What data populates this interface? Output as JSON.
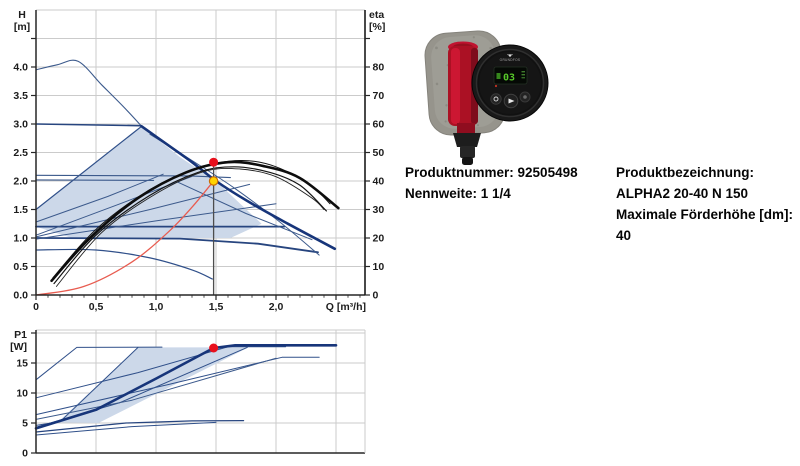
{
  "product": {
    "fields_left": [
      {
        "label": "Produktnummer:",
        "value": "92505498"
      },
      {
        "label": "Nennweite:",
        "value": "1 1/4"
      }
    ],
    "fields_right": [
      {
        "label": "Produktbezeichnung:",
        "value": "ALPHA2 20-40 N 150"
      },
      {
        "label": "Maximale Förderhöhe [dm]:",
        "value": "40"
      }
    ]
  },
  "pump_image": {
    "description": "Grundfos ALPHA2 circulator pump with grey insulation shell, red housing and black round control head",
    "display_text": "03",
    "brand_text": "GRUNDFOS",
    "body_color": "#b01226",
    "shell_color": "#96948c",
    "head_color": "#191919",
    "display_color": "#57c82a"
  },
  "chart_data": [
    {
      "type": "line",
      "name": "head-efficiency-chart",
      "axes": {
        "h_label": "H",
        "h_unit": "[m]",
        "eta_label": "eta",
        "eta_unit": "[%]",
        "x_label": "Q [m³/h]"
      },
      "xlim": [
        0,
        2.74
      ],
      "hlim": [
        0,
        5.0
      ],
      "etalim": [
        0,
        100
      ],
      "grid": true,
      "x_grid": [
        0.5,
        1.0,
        1.5,
        2.0,
        2.5
      ],
      "h_grid": [
        0.5,
        1.0,
        1.5,
        2.0,
        2.5,
        3.0,
        3.5,
        4.0,
        4.5
      ],
      "x_ticks": [
        {
          "v": 0,
          "t": "0"
        },
        {
          "v": 0.5,
          "t": "0,5"
        },
        {
          "v": 1.0,
          "t": "1,0"
        },
        {
          "v": 1.5,
          "t": "1,5"
        },
        {
          "v": 2.0,
          "t": "2,0"
        },
        {
          "v": 2.5,
          "t": ""
        }
      ],
      "h_ticks": [
        {
          "v": 0,
          "t": "0.0"
        },
        {
          "v": 0.5,
          "t": "0.5"
        },
        {
          "v": 1.0,
          "t": "1.0"
        },
        {
          "v": 1.5,
          "t": "1.5"
        },
        {
          "v": 2.0,
          "t": "2.0"
        },
        {
          "v": 2.5,
          "t": "2.5"
        },
        {
          "v": 3.0,
          "t": "3.0"
        },
        {
          "v": 3.5,
          "t": "3.5"
        },
        {
          "v": 4.0,
          "t": "4.0"
        },
        {
          "v": 4.5,
          "t": ""
        }
      ],
      "eta_ticks": [
        {
          "v": 0,
          "t": "0"
        },
        {
          "v": 10,
          "t": "10"
        },
        {
          "v": 20,
          "t": "20"
        },
        {
          "v": 30,
          "t": "30"
        },
        {
          "v": 40,
          "t": "40"
        },
        {
          "v": 50,
          "t": "50"
        },
        {
          "v": 60,
          "t": "60"
        },
        {
          "v": 70,
          "t": "70"
        },
        {
          "v": 80,
          "t": "80"
        },
        {
          "v": 90,
          "t": ""
        }
      ],
      "envelope": {
        "fill": "#ccd8e9",
        "points": [
          [
            0,
            1.5
          ],
          [
            0.88,
            2.96
          ],
          [
            1.2,
            2.42
          ],
          [
            1.5,
            2.0
          ],
          [
            1.88,
            1.25
          ],
          [
            1.62,
            1.0
          ],
          [
            0.3,
            1.0
          ],
          [
            0,
            1.2
          ]
        ]
      },
      "duty_point": {
        "q": 1.48,
        "h": 2.0,
        "eta": 46.5
      },
      "duty_line": {
        "q": 1.48,
        "from": 0,
        "to": 2.33,
        "color": "#4d4d4d"
      },
      "markers": [
        {
          "name": "efficiency-duty-marker",
          "q": 1.48,
          "v": 2.33,
          "r": 4.5,
          "fill": "#e8101c",
          "stroke": "none"
        },
        {
          "name": "duty-point-marker",
          "q": 1.48,
          "v": 2.0,
          "r": 4.2,
          "fill": "#ffd300",
          "stroke": "#cc6d00"
        }
      ],
      "curves": [
        {
          "name": "max-speed-curve-left",
          "axis": "H",
          "color": "#3c5a8c",
          "width": 1.1,
          "smooth": true,
          "points": [
            [
              0,
              3.95
            ],
            [
              0.18,
              4.04
            ],
            [
              0.35,
              4.1
            ],
            [
              0.55,
              3.68
            ],
            [
              0.73,
              3.3
            ],
            [
              0.88,
              2.96
            ]
          ]
        },
        {
          "name": "pp-envelope-boundary",
          "axis": "H",
          "color": "#30508a",
          "width": 1.2,
          "points": [
            [
              0,
              1.5
            ],
            [
              0.88,
              2.96
            ]
          ]
        },
        {
          "name": "cp-curve-3",
          "axis": "H",
          "color": "#27457f",
          "width": 1.6,
          "points": [
            [
              0,
              3.0
            ],
            [
              0.87,
              2.97
            ]
          ]
        },
        {
          "name": "cp-curve-2a",
          "axis": "H",
          "color": "#3c5a8c",
          "width": 1.1,
          "points": [
            [
              0,
              2.1
            ],
            [
              1.28,
              2.09
            ],
            [
              1.62,
              2.06
            ]
          ]
        },
        {
          "name": "cp-curve-2b",
          "axis": "H",
          "color": "#3c5a8c",
          "width": 1.1,
          "points": [
            [
              0,
              2.02
            ],
            [
              0.98,
              2.01
            ]
          ]
        },
        {
          "name": "cp-curve-1a",
          "axis": "H",
          "color": "#27457f",
          "width": 1.8,
          "points": [
            [
              0,
              1.2
            ],
            [
              2.07,
              1.2
            ]
          ]
        },
        {
          "name": "cp-curve-1b",
          "axis": "H",
          "color": "#27457f",
          "width": 1.8,
          "points": [
            [
              0,
              1.0
            ],
            [
              1.2,
              0.99
            ],
            [
              1.85,
              0.9
            ],
            [
              2.35,
              0.75
            ]
          ]
        },
        {
          "name": "pp-curve-1",
          "axis": "H",
          "color": "#3c5a8c",
          "width": 1,
          "points": [
            [
              0,
              1.28
            ],
            [
              0.6,
              1.73
            ],
            [
              1.06,
              2.12
            ]
          ]
        },
        {
          "name": "pp-curve-2",
          "axis": "H",
          "color": "#3c5a8c",
          "width": 1,
          "points": [
            [
              0,
              1.05
            ],
            [
              0.7,
              1.6
            ],
            [
              1.3,
              2.08
            ]
          ]
        },
        {
          "name": "pp-curve-3",
          "axis": "H",
          "color": "#3c5a8c",
          "width": 1,
          "points": [
            [
              0,
              1.02
            ],
            [
              0.95,
              1.5
            ],
            [
              1.78,
              1.94
            ]
          ]
        },
        {
          "name": "pp-curve-4",
          "axis": "H",
          "color": "#3c5a8c",
          "width": 1,
          "points": [
            [
              0,
              0.98
            ],
            [
              1.0,
              1.3
            ],
            [
              2.0,
              1.6
            ]
          ]
        },
        {
          "name": "min-speed-curve",
          "axis": "H",
          "color": "#30508a",
          "width": 1.2,
          "smooth": true,
          "points": [
            [
              0,
              0.79
            ],
            [
              0.5,
              0.79
            ],
            [
              0.95,
              0.65
            ],
            [
              1.3,
              0.44
            ],
            [
              1.47,
              0.28
            ]
          ]
        },
        {
          "name": "max-speed-curve-right",
          "axis": "H",
          "color": "#3c5a8c",
          "width": 1,
          "smooth": true,
          "points": [
            [
              0.95,
              2.82
            ],
            [
              1.3,
              2.36
            ],
            [
              1.65,
              1.88
            ],
            [
              2.02,
              1.3
            ],
            [
              2.36,
              0.7
            ]
          ]
        },
        {
          "name": "speed-curve-2",
          "axis": "H",
          "color": "#3c5a8c",
          "width": 1,
          "points": [
            [
              1.18,
              1.98
            ],
            [
              1.75,
              1.43
            ],
            [
              2.3,
              0.97
            ]
          ]
        },
        {
          "name": "selected-duty-curve",
          "axis": "H",
          "color": "#17357a",
          "width": 2.6,
          "smooth": true,
          "points": [
            [
              0.88,
              2.96
            ],
            [
              1.1,
              2.63
            ],
            [
              1.3,
              2.33
            ],
            [
              1.5,
              2.0
            ],
            [
              1.76,
              1.65
            ],
            [
              2.1,
              1.25
            ],
            [
              2.49,
              0.81
            ]
          ]
        },
        {
          "name": "efficiency-curve-top",
          "axis": "eta",
          "color": "#141414",
          "width": 1,
          "smooth": true,
          "points": [
            [
              0.14,
              6
            ],
            [
              0.5,
              23
            ],
            [
              0.95,
              37
            ],
            [
              1.35,
              44.5
            ],
            [
              1.7,
              47.2
            ],
            [
              2.0,
              45
            ],
            [
              2.3,
              38
            ],
            [
              2.45,
              32
            ]
          ]
        },
        {
          "name": "efficiency-curve-main",
          "axis": "eta",
          "color": "#0d0d0d",
          "width": 2.6,
          "smooth": true,
          "points": [
            [
              0.13,
              5
            ],
            [
              0.45,
              20
            ],
            [
              0.85,
              34
            ],
            [
              1.25,
              43
            ],
            [
              1.6,
              46.6
            ],
            [
              1.9,
              45.2
            ],
            [
              2.2,
              41
            ],
            [
              2.52,
              30.5
            ]
          ]
        },
        {
          "name": "efficiency-curve-2",
          "axis": "eta",
          "color": "#141414",
          "width": 1.2,
          "smooth": true,
          "points": [
            [
              0.15,
              4
            ],
            [
              0.5,
              21
            ],
            [
              0.95,
              35
            ],
            [
              1.35,
              43
            ],
            [
              1.65,
              45
            ],
            [
              1.95,
              43
            ],
            [
              2.2,
              38.5
            ],
            [
              2.42,
              29.5
            ]
          ]
        },
        {
          "name": "efficiency-curve-3",
          "axis": "eta",
          "color": "#222222",
          "width": 0.9,
          "smooth": true,
          "points": [
            [
              0.17,
              3
            ],
            [
              0.55,
              22
            ],
            [
              1.0,
              35.5
            ],
            [
              1.4,
              43.3
            ],
            [
              1.7,
              44.2
            ],
            [
              2.0,
              41.5
            ],
            [
              2.3,
              34
            ],
            [
              2.4,
              30
            ]
          ]
        },
        {
          "name": "system-curve",
          "axis": "H",
          "color": "#e85c50",
          "width": 1.3,
          "smooth": true,
          "points": [
            [
              0,
              0
            ],
            [
              0.4,
              0.15
            ],
            [
              0.8,
              0.58
            ],
            [
              1.1,
              1.1
            ],
            [
              1.3,
              1.54
            ],
            [
              1.48,
              2.0
            ]
          ]
        }
      ]
    },
    {
      "type": "line",
      "name": "power-chart",
      "axes": {
        "p_label": "P1",
        "p_unit": "[W]"
      },
      "xlim": [
        0,
        2.74
      ],
      "plim": [
        0,
        20.5
      ],
      "grid": true,
      "x_grid": [
        0.5,
        1.0,
        1.5,
        2.0,
        2.5
      ],
      "p_grid": [
        5,
        10,
        15,
        20
      ],
      "p_ticks": [
        {
          "v": 0,
          "t": "0"
        },
        {
          "v": 5,
          "t": "5"
        },
        {
          "v": 10,
          "t": "10"
        },
        {
          "v": 15,
          "t": "15"
        },
        {
          "v": 20,
          "t": ""
        }
      ],
      "envelope": {
        "fill": "#ccd8e9",
        "points": [
          [
            0.18,
            5.1
          ],
          [
            0.85,
            17.6
          ],
          [
            1.77,
            17.6
          ],
          [
            0.52,
            5.0
          ]
        ]
      },
      "duty_point": {
        "q": 1.48,
        "p1": 17.5
      },
      "markers": [
        {
          "name": "power-duty-marker",
          "q": 1.48,
          "v": 17.5,
          "r": 4.5,
          "fill": "#e8101c",
          "stroke": "none"
        }
      ],
      "curves": [
        {
          "name": "power-curve-1",
          "axis": "P",
          "color": "#30508a",
          "width": 1,
          "points": [
            [
              0,
              12.2
            ],
            [
              0.34,
              17.6
            ],
            [
              1.05,
              17.65
            ]
          ]
        },
        {
          "name": "power-curve-2",
          "axis": "P",
          "color": "#30508a",
          "width": 1,
          "points": [
            [
              0,
              9.2
            ],
            [
              0.85,
              13.4
            ],
            [
              1.6,
              17.7
            ],
            [
              2.08,
              17.7
            ]
          ]
        },
        {
          "name": "power-curve-3",
          "axis": "P",
          "color": "#30508a",
          "width": 1,
          "points": [
            [
              0,
              6.4
            ],
            [
              1.1,
              11.4
            ],
            [
              2.05,
              15.95
            ],
            [
              2.36,
              15.95
            ]
          ]
        },
        {
          "name": "power-curve-4",
          "axis": "P",
          "color": "#30508a",
          "width": 1,
          "points": [
            [
              0,
              4.6
            ],
            [
              0.2,
              5.2
            ],
            [
              0.85,
              17.6
            ]
          ]
        },
        {
          "name": "power-curve-5",
          "axis": "P",
          "color": "#30508a",
          "width": 1,
          "points": [
            [
              0,
              4.3
            ],
            [
              0.7,
              8.4
            ],
            [
              1.76,
              17.6
            ]
          ]
        },
        {
          "name": "power-curve-6",
          "axis": "P",
          "color": "#3c5a8c",
          "width": 1,
          "points": [
            [
              0,
              5.6
            ],
            [
              0.8,
              8.8
            ],
            [
              2.0,
              15.8
            ]
          ]
        },
        {
          "name": "power-curve-7",
          "axis": "P",
          "color": "#30508a",
          "width": 1,
          "points": [
            [
              0,
              3.0
            ],
            [
              0.8,
              4.4
            ],
            [
              1.5,
              5.1
            ]
          ]
        },
        {
          "name": "power-curve-min",
          "axis": "P",
          "color": "#27457f",
          "width": 1.2,
          "points": [
            [
              0,
              3.5
            ],
            [
              0.75,
              5.0
            ],
            [
              1.3,
              5.35
            ],
            [
              1.73,
              5.4
            ]
          ]
        },
        {
          "name": "power-curve-selected",
          "axis": "P",
          "color": "#17357a",
          "width": 2.6,
          "points": [
            [
              0,
              4.1
            ],
            [
              0.5,
              7.2
            ],
            [
              1.0,
              12.4
            ],
            [
              1.48,
              17.5
            ],
            [
              1.66,
              17.95
            ],
            [
              2.5,
              17.95
            ]
          ]
        }
      ]
    }
  ],
  "style": {
    "grid_color": "#cbcbcb",
    "axis_color": "#262626",
    "tick_text_color": "#1c1c1c"
  }
}
